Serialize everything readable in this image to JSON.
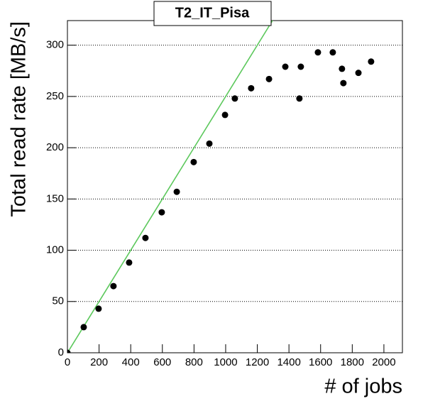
{
  "chart_data": {
    "type": "scatter",
    "title": "T2_IT_Pisa",
    "x_label": "# of jobs",
    "y_label": "Total read rate [MB/s]",
    "series": [
      {
        "color": "#000000",
        "x": [
          0,
          103,
          197,
          291,
          390,
          493,
          596,
          691,
          798,
          897,
          996,
          1058,
          1161,
          1274,
          1377,
          1466,
          1475,
          1583,
          1677,
          1735,
          1744,
          1839,
          1919
        ],
        "values": [
          0,
          25,
          43,
          65,
          88,
          112,
          137,
          157,
          186,
          204,
          232,
          248,
          258,
          267,
          279,
          248,
          279,
          293,
          293,
          277,
          263,
          273,
          284
        ]
      }
    ],
    "reference_line": {
      "color": "#5cc85c",
      "x": [
        0,
        1300
      ],
      "values": [
        0,
        325
      ]
    },
    "xlim": [
      0,
      2117
    ],
    "ylim": [
      0,
      324
    ],
    "xticks": [
      0,
      200,
      400,
      600,
      800,
      1000,
      1200,
      1400,
      1600,
      1800,
      2000
    ],
    "yticks": [
      0,
      50,
      100,
      150,
      200,
      250,
      300
    ],
    "grid": true
  }
}
